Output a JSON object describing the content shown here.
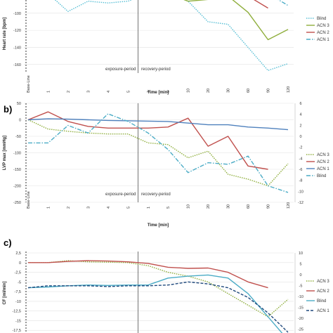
{
  "chart_data": [
    {
      "type": "line",
      "panel_label": "",
      "ylabel": "Heart rate [bpm]",
      "xlabel": "Time [min]",
      "categories": [
        "Base-Line",
        "1",
        "2",
        "3",
        "4",
        "5",
        "1",
        "5",
        "10",
        "20",
        "30",
        "60",
        "90",
        "120"
      ],
      "ylim": [
        -170,
        -78
      ],
      "yticks": [
        -80,
        -100,
        -120,
        -140,
        -160
      ],
      "annotations": [
        "exposure-period",
        "recovery-period"
      ],
      "legend": "right",
      "series": [
        {
          "name": "Blind",
          "color": "#5bc0d6",
          "dash": "1.5,1.5",
          "values": [
            -77,
            -77,
            -98,
            -86,
            -88,
            -86,
            -77,
            -77,
            -86,
            -110,
            -113,
            -140,
            -167,
            -159
          ]
        },
        {
          "name": "ACN 3",
          "color": "#8fae3c",
          "dash": "",
          "values": [
            null,
            null,
            null,
            null,
            -80,
            -77,
            -77,
            -77,
            -86,
            -84,
            -80,
            -99,
            -131,
            -119
          ]
        },
        {
          "name": "ACN 2",
          "color": "#c0504d",
          "dash": "",
          "values": [
            null,
            null,
            null,
            null,
            null,
            null,
            null,
            null,
            null,
            null,
            -77,
            -80,
            -94,
            null
          ]
        },
        {
          "name": "ACN 1",
          "color": "#4bacc6",
          "dash": "6,2,1.5,2",
          "values": [
            null,
            null,
            null,
            null,
            null,
            null,
            null,
            null,
            null,
            null,
            null,
            null,
            -77,
            -91
          ]
        }
      ]
    },
    {
      "type": "line",
      "panel_label": "b)",
      "ylabel": "LVP max [mmHg]",
      "xlabel": "Time [min]",
      "categories": [
        "Base-Line",
        "1",
        "2",
        "3",
        "4",
        "5",
        "1",
        "5",
        "10",
        "20",
        "30",
        "60",
        "90",
        "120"
      ],
      "ylim": [
        -250,
        50
      ],
      "yticks": [
        50,
        0,
        -50,
        -100,
        -150,
        -200,
        -250
      ],
      "y2ticks": [
        6,
        4,
        2,
        0,
        -2,
        -4,
        -6,
        -8,
        -10,
        -12
      ],
      "annotations": [
        "exposure-period",
        "recovery-period"
      ],
      "legend": "right",
      "series": [
        {
          "name": "ACN 3",
          "color": "#8fae3c",
          "dash": "1.5,1.5",
          "values": [
            0,
            -28,
            -35,
            -40,
            -43,
            -43,
            -70,
            -75,
            -115,
            -95,
            -165,
            -180,
            -200,
            -133
          ]
        },
        {
          "name": "ACN 2",
          "color": "#c0504d",
          "dash": "",
          "values": [
            0,
            24,
            -5,
            -20,
            -25,
            -25,
            -25,
            -22,
            5,
            -80,
            -50,
            -140,
            -150,
            null
          ]
        },
        {
          "name": "ACN 1",
          "color": "#4f81bd",
          "dash": "",
          "values": [
            0,
            3,
            2,
            0,
            -2,
            -3,
            -4,
            -5,
            -10,
            -15,
            -15,
            -22,
            -25,
            -30
          ]
        },
        {
          "name": "Blind",
          "color": "#4bacc6",
          "dash": "6,2,1.5,2",
          "values": [
            -70,
            -70,
            -17,
            -40,
            18,
            -5,
            -40,
            -90,
            -160,
            -130,
            -135,
            -110,
            -200,
            -220
          ]
        }
      ]
    },
    {
      "type": "line",
      "panel_label": "c)",
      "ylabel": "CF [ml/min]",
      "xlabel": "",
      "categories": [
        "Base-Line",
        "1",
        "2",
        "3",
        "4",
        "5",
        "1",
        "5",
        "10",
        "20",
        "30",
        "60",
        "90",
        "120"
      ],
      "ylim": [
        -20,
        2.5
      ],
      "yticks": [
        "2,5",
        "0",
        "-2,5",
        "-5",
        "-7,5",
        "-10",
        "-12,5",
        "-15",
        "-17,5",
        "-20"
      ],
      "y2ticks": [
        10,
        5,
        0,
        -5,
        -10,
        -15,
        -20,
        -25,
        -30
      ],
      "legend": "right",
      "series": [
        {
          "name": "ACN 3",
          "color": "#8fae3c",
          "dash": "1.5,1.5",
          "values": [
            0,
            0,
            0.5,
            0.2,
            0.1,
            0,
            -0.8,
            -2.5,
            -3.5,
            -5,
            -8,
            -11,
            -14,
            -9.5
          ]
        },
        {
          "name": "ACN 2",
          "color": "#c0504d",
          "dash": "",
          "values": [
            0,
            0,
            0.3,
            0.5,
            0.4,
            0.2,
            -0.2,
            -1.2,
            -1.5,
            -1.4,
            -2.5,
            -5,
            -6.5,
            null
          ]
        },
        {
          "name": "Blind",
          "color": "#4bacc6",
          "dash": "",
          "values": [
            -6.5,
            -6.3,
            -6,
            -5.8,
            -5.9,
            -5.8,
            -5.8,
            -4,
            -3.5,
            -3.2,
            -4,
            -8,
            -14,
            -20
          ]
        },
        {
          "name": "ACN 1",
          "color": "#1f497d",
          "dash": "4,2",
          "values": [
            -6.5,
            -6,
            -6,
            -6,
            -6.2,
            -6,
            -6,
            -5.8,
            -5,
            -5.5,
            -6.5,
            -9,
            -13,
            -18
          ]
        }
      ]
    }
  ]
}
